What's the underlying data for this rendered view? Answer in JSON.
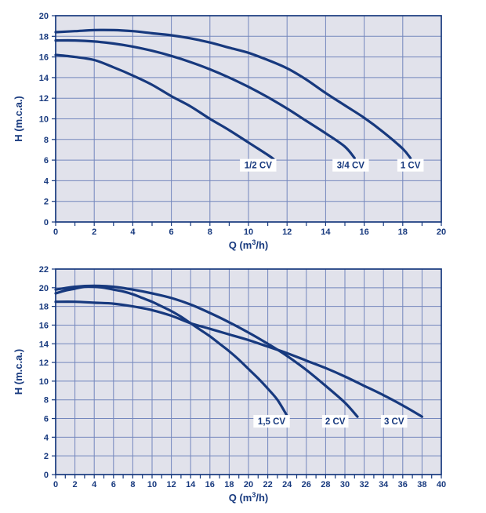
{
  "colors": {
    "navy": "#17397E",
    "curve": "#17397E",
    "grid": "#7487BD",
    "plot_bg": "#E1E2EB",
    "page_bg": "#FFFFFF",
    "label_box": "#FFFFFF"
  },
  "axis": {
    "ylabel": "H (m.c.a.)",
    "xlabel": "Q (m³/h)",
    "xlabel_parts": {
      "pre": "Q (m",
      "sup": "3",
      "post": "/h)"
    }
  },
  "chart_data": [
    {
      "type": "line",
      "title": "",
      "xlabel": "Q (m³/h)",
      "ylabel": "H (m.c.a.)",
      "xlim": [
        0,
        20
      ],
      "ylim": [
        0,
        20
      ],
      "x_label_step": 2,
      "x_minor_step": 1,
      "y_label_step": 2,
      "x_grid_step": 2,
      "y_grid_step": 2,
      "grid": true,
      "legend_position": "inline-labels",
      "series": [
        {
          "name": "1/2 CV",
          "label_pos": [
            10.5,
            5.5
          ],
          "points": [
            [
              0,
              16.2
            ],
            [
              1,
              16.0
            ],
            [
              2,
              15.7
            ],
            [
              3,
              15.0
            ],
            [
              4,
              14.2
            ],
            [
              5,
              13.3
            ],
            [
              6,
              12.2
            ],
            [
              7,
              11.2
            ],
            [
              8,
              10.0
            ],
            [
              9,
              8.9
            ],
            [
              10,
              7.7
            ],
            [
              11,
              6.5
            ],
            [
              11.3,
              6.1
            ]
          ]
        },
        {
          "name": "3/4 CV",
          "label_pos": [
            15.3,
            5.5
          ],
          "points": [
            [
              0,
              17.6
            ],
            [
              1,
              17.6
            ],
            [
              2,
              17.5
            ],
            [
              3,
              17.3
            ],
            [
              4,
              17.0
            ],
            [
              5,
              16.6
            ],
            [
              6,
              16.1
            ],
            [
              7,
              15.5
            ],
            [
              8,
              14.8
            ],
            [
              9,
              14.0
            ],
            [
              10,
              13.1
            ],
            [
              11,
              12.1
            ],
            [
              12,
              11.0
            ],
            [
              13,
              9.8
            ],
            [
              14,
              8.6
            ],
            [
              15,
              7.3
            ],
            [
              15.5,
              6.2
            ]
          ]
        },
        {
          "name": "1 CV",
          "label_pos": [
            18.4,
            5.5
          ],
          "points": [
            [
              0,
              18.4
            ],
            [
              1,
              18.5
            ],
            [
              2,
              18.6
            ],
            [
              3,
              18.6
            ],
            [
              4,
              18.5
            ],
            [
              5,
              18.3
            ],
            [
              6,
              18.1
            ],
            [
              7,
              17.8
            ],
            [
              8,
              17.4
            ],
            [
              9,
              16.9
            ],
            [
              10,
              16.4
            ],
            [
              11,
              15.7
            ],
            [
              12,
              14.9
            ],
            [
              13,
              13.8
            ],
            [
              14,
              12.5
            ],
            [
              15,
              11.3
            ],
            [
              16,
              10.1
            ],
            [
              17,
              8.7
            ],
            [
              18,
              7.1
            ],
            [
              18.4,
              6.2
            ]
          ]
        }
      ]
    },
    {
      "type": "line",
      "title": "",
      "xlabel": "Q (m³/h)",
      "ylabel": "H (m.c.a.)",
      "xlim": [
        0,
        40
      ],
      "ylim": [
        0,
        22
      ],
      "x_label_step": 2,
      "x_minor_step": 1,
      "y_label_step": 2,
      "x_grid_step": 2,
      "y_grid_step": 2,
      "grid": true,
      "legend_position": "inline-labels",
      "series": [
        {
          "name": "1,5 CV",
          "label_pos": [
            22.4,
            5.7
          ],
          "points": [
            [
              0,
              19.4
            ],
            [
              1,
              19.7
            ],
            [
              2,
              19.9
            ],
            [
              3,
              20.1
            ],
            [
              4,
              20.1
            ],
            [
              5,
              20.0
            ],
            [
              6,
              19.8
            ],
            [
              7,
              19.6
            ],
            [
              8,
              19.3
            ],
            [
              9,
              18.9
            ],
            [
              10,
              18.5
            ],
            [
              11,
              18.0
            ],
            [
              12,
              17.5
            ],
            [
              13,
              16.9
            ],
            [
              14,
              16.2
            ],
            [
              15,
              15.5
            ],
            [
              16,
              14.8
            ],
            [
              17,
              14.0
            ],
            [
              18,
              13.2
            ],
            [
              19,
              12.3
            ],
            [
              20,
              11.3
            ],
            [
              21,
              10.3
            ],
            [
              22,
              9.2
            ],
            [
              23,
              8.0
            ],
            [
              24,
              6.3
            ]
          ]
        },
        {
          "name": "2 CV",
          "label_pos": [
            29.0,
            5.7
          ],
          "points": [
            [
              0,
              19.8
            ],
            [
              2,
              20.1
            ],
            [
              4,
              20.2
            ],
            [
              6,
              20.1
            ],
            [
              8,
              19.8
            ],
            [
              10,
              19.4
            ],
            [
              12,
              18.9
            ],
            [
              14,
              18.2
            ],
            [
              16,
              17.3
            ],
            [
              18,
              16.3
            ],
            [
              20,
              15.2
            ],
            [
              22,
              14.0
            ],
            [
              24,
              12.7
            ],
            [
              26,
              11.2
            ],
            [
              28,
              9.5
            ],
            [
              30,
              7.7
            ],
            [
              31.3,
              6.2
            ]
          ]
        },
        {
          "name": "3 CV",
          "label_pos": [
            35.1,
            5.7
          ],
          "points": [
            [
              0,
              18.5
            ],
            [
              2,
              18.5
            ],
            [
              4,
              18.4
            ],
            [
              6,
              18.3
            ],
            [
              8,
              18.0
            ],
            [
              10,
              17.6
            ],
            [
              12,
              17.0
            ],
            [
              14,
              16.2
            ],
            [
              16,
              15.6
            ],
            [
              18,
              15.0
            ],
            [
              20,
              14.4
            ],
            [
              22,
              13.7
            ],
            [
              24,
              13.0
            ],
            [
              26,
              12.2
            ],
            [
              28,
              11.4
            ],
            [
              30,
              10.5
            ],
            [
              32,
              9.5
            ],
            [
              34,
              8.5
            ],
            [
              36,
              7.4
            ],
            [
              38,
              6.2
            ]
          ]
        }
      ]
    }
  ]
}
